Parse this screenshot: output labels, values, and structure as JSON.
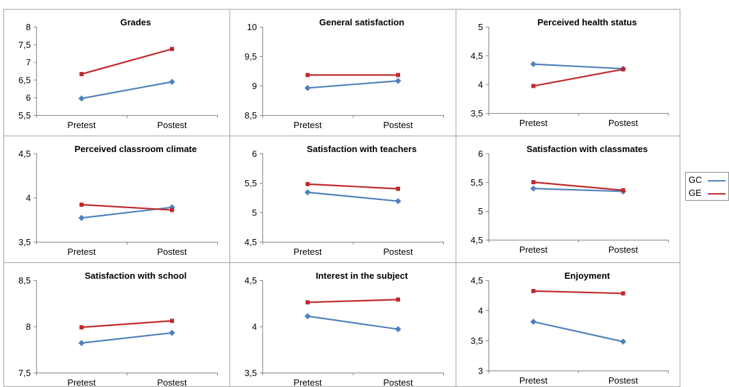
{
  "legend": {
    "entries": [
      {
        "label": "GC",
        "color": "#4f81bd"
      },
      {
        "label": "GE",
        "color": "#c0282b"
      }
    ]
  },
  "chart_data": [
    {
      "type": "line",
      "title": "Grades",
      "categories": [
        "Pretest",
        "Postest"
      ],
      "yticks": [
        "5,5",
        "6",
        "6,5",
        "7",
        "7,5",
        "8"
      ],
      "ylim": [
        5.5,
        8
      ],
      "series": [
        {
          "name": "GC",
          "values": [
            5.97,
            6.44
          ]
        },
        {
          "name": "GE",
          "values": [
            6.66,
            7.37
          ]
        }
      ]
    },
    {
      "type": "line",
      "title": "General satisfaction",
      "categories": [
        "Pretest",
        "Postest"
      ],
      "yticks": [
        "8,5",
        "9",
        "9,5",
        "10"
      ],
      "ylim": [
        8.5,
        10
      ],
      "series": [
        {
          "name": "GC",
          "values": [
            8.96,
            9.08
          ]
        },
        {
          "name": "GE",
          "values": [
            9.18,
            9.18
          ]
        }
      ]
    },
    {
      "type": "line",
      "title": "Perceived health status",
      "categories": [
        "Pretest",
        "Postest"
      ],
      "yticks": [
        "3,5",
        "4",
        "4,5",
        "5"
      ],
      "ylim": [
        3.5,
        5
      ],
      "series": [
        {
          "name": "GC",
          "values": [
            4.35,
            4.27
          ]
        },
        {
          "name": "GE",
          "values": [
            3.97,
            4.26
          ]
        }
      ]
    },
    {
      "type": "line",
      "title": "Perceived classroom climate",
      "categories": [
        "Pretest",
        "Postest"
      ],
      "yticks": [
        "3,5",
        "4",
        "4,5"
      ],
      "ylim": [
        3.5,
        4.5
      ],
      "series": [
        {
          "name": "GC",
          "values": [
            3.77,
            3.89
          ]
        },
        {
          "name": "GE",
          "values": [
            3.92,
            3.86
          ]
        }
      ]
    },
    {
      "type": "line",
      "title": "Satisfaction with teachers",
      "categories": [
        "Pretest",
        "Postest"
      ],
      "yticks": [
        "4,5",
        "5",
        "5,5",
        "6"
      ],
      "ylim": [
        4.5,
        6
      ],
      "series": [
        {
          "name": "GC",
          "values": [
            5.34,
            5.19
          ]
        },
        {
          "name": "GE",
          "values": [
            5.48,
            5.4
          ]
        }
      ]
    },
    {
      "type": "line",
      "title": "Satisfaction with classmates",
      "categories": [
        "Pretest",
        "Postest"
      ],
      "yticks": [
        "4,5",
        "5",
        "5,5",
        "6"
      ],
      "ylim": [
        4.5,
        6
      ],
      "series": [
        {
          "name": "GC",
          "values": [
            5.39,
            5.34
          ]
        },
        {
          "name": "GE",
          "values": [
            5.5,
            5.36
          ]
        }
      ]
    },
    {
      "type": "line",
      "title": "Satisfaction with school",
      "categories": [
        "Pretest",
        "Postest"
      ],
      "yticks": [
        "7,5",
        "8",
        "8,5"
      ],
      "ylim": [
        7.5,
        8.5
      ],
      "series": [
        {
          "name": "GC",
          "values": [
            7.82,
            7.93
          ]
        },
        {
          "name": "GE",
          "values": [
            7.99,
            8.06
          ]
        }
      ]
    },
    {
      "type": "line",
      "title": "Interest in the subject",
      "categories": [
        "Pretest",
        "Postest"
      ],
      "yticks": [
        "3,5",
        "4",
        "4,5"
      ],
      "ylim": [
        3.5,
        4.5
      ],
      "series": [
        {
          "name": "GC",
          "values": [
            4.11,
            3.97
          ]
        },
        {
          "name": "GE",
          "values": [
            4.26,
            4.29
          ]
        }
      ]
    },
    {
      "type": "line",
      "title": "Enjoyment",
      "categories": [
        "Pretest",
        "Postest"
      ],
      "yticks": [
        "3",
        "3,5",
        "4",
        "4,5"
      ],
      "ylim": [
        3,
        4.5
      ],
      "series": [
        {
          "name": "GC",
          "values": [
            3.81,
            3.48
          ]
        },
        {
          "name": "GE",
          "values": [
            4.32,
            4.28
          ]
        }
      ]
    }
  ]
}
